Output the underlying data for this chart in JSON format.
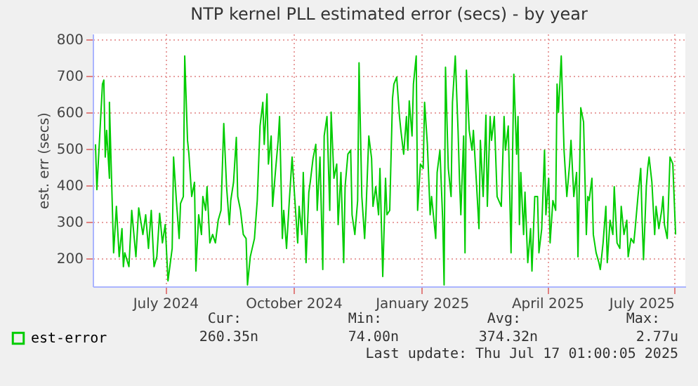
{
  "chart_data": {
    "type": "line",
    "title": "NTP kernel PLL estimated error (secs) - by year",
    "ylabel": "est. err (secs)",
    "x": [
      "2024-05-12",
      "2024-05-13",
      "2024-05-17",
      "2024-05-18",
      "2024-05-19",
      "2024-05-20",
      "2024-05-22",
      "2024-05-22",
      "2024-05-25",
      "2024-05-27",
      "2024-05-29",
      "2024-05-31",
      "2024-06-01",
      "2024-06-02",
      "2024-06-05",
      "2024-06-07",
      "2024-06-10",
      "2024-06-12",
      "2024-06-15",
      "2024-06-17",
      "2024-06-19",
      "2024-06-21",
      "2024-06-23",
      "2024-06-25",
      "2024-06-27",
      "2024-06-29",
      "2024-07-01",
      "2024-07-03",
      "2024-07-06",
      "2024-07-07",
      "2024-07-09",
      "2024-07-11",
      "2024-07-12",
      "2024-07-14",
      "2024-07-15",
      "2024-07-17",
      "2024-07-18",
      "2024-07-20",
      "2024-07-22",
      "2024-07-23",
      "2024-07-25",
      "2024-07-27",
      "2024-07-28",
      "2024-07-30",
      "2024-07-31",
      "2024-08-02",
      "2024-08-04",
      "2024-08-06",
      "2024-08-08",
      "2024-08-10",
      "2024-08-12",
      "2024-08-14",
      "2024-08-16",
      "2024-08-17",
      "2024-08-19",
      "2024-08-21",
      "2024-08-22",
      "2024-08-24",
      "2024-08-26",
      "2024-08-28",
      "2024-08-29",
      "2024-08-31",
      "2024-09-03",
      "2024-09-05",
      "2024-09-07",
      "2024-09-09",
      "2024-09-10",
      "2024-09-12",
      "2024-09-13",
      "2024-09-15",
      "2024-09-16",
      "2024-09-18",
      "2024-09-20",
      "2024-09-21",
      "2024-09-23",
      "2024-09-24",
      "2024-09-26",
      "2024-09-28",
      "2024-09-30",
      "2024-10-02",
      "2024-10-04",
      "2024-10-05",
      "2024-10-07",
      "2024-10-08",
      "2024-10-10",
      "2024-10-12",
      "2024-10-13",
      "2024-10-15",
      "2024-10-17",
      "2024-10-18",
      "2024-10-20",
      "2024-10-22",
      "2024-10-23",
      "2024-10-25",
      "2024-10-27",
      "2024-10-28",
      "2024-10-30",
      "2024-11-01",
      "2024-11-02",
      "2024-11-04",
      "2024-11-06",
      "2024-11-07",
      "2024-11-09",
      "2024-11-11",
      "2024-11-12",
      "2024-11-14",
      "2024-11-16",
      "2024-11-17",
      "2024-11-19",
      "2024-11-21",
      "2024-11-22",
      "2024-11-24",
      "2024-11-26",
      "2024-11-27",
      "2024-11-29",
      "2024-12-01",
      "2024-12-02",
      "2024-12-04",
      "2024-12-06",
      "2024-12-07",
      "2024-12-09",
      "2024-12-11",
      "2024-12-12",
      "2024-12-14",
      "2024-12-16",
      "2024-12-17",
      "2024-12-19",
      "2024-12-21",
      "2024-12-22",
      "2024-12-23",
      "2024-12-25",
      "2024-12-26",
      "2024-12-28",
      "2024-12-29",
      "2024-12-31",
      "2025-01-02",
      "2025-01-03",
      "2025-01-05",
      "2025-01-07",
      "2025-01-08",
      "2025-01-11",
      "2025-01-12",
      "2025-01-14",
      "2025-01-16",
      "2025-01-17",
      "2025-01-18",
      "2025-01-20",
      "2025-01-22",
      "2025-01-23",
      "2025-01-25",
      "2025-01-27",
      "2025-01-28",
      "2025-01-29",
      "2025-01-31",
      "2025-02-01",
      "2025-02-02",
      "2025-02-04",
      "2025-02-06",
      "2025-02-07",
      "2025-02-09",
      "2025-02-11",
      "2025-02-12",
      "2025-02-14",
      "2025-02-16",
      "2025-02-17",
      "2025-02-19",
      "2025-02-20",
      "2025-02-22",
      "2025-02-24",
      "2025-02-27",
      "2025-03-01",
      "2025-03-02",
      "2025-03-04",
      "2025-03-06",
      "2025-03-08",
      "2025-03-10",
      "2025-03-11",
      "2025-03-12",
      "2025-03-13",
      "2025-03-15",
      "2025-03-16",
      "2025-03-18",
      "2025-03-20",
      "2025-03-21",
      "2025-03-23",
      "2025-03-25",
      "2025-03-26",
      "2025-03-28",
      "2025-03-30",
      "2025-03-31",
      "2025-04-02",
      "2025-04-03",
      "2025-04-05",
      "2025-04-07",
      "2025-04-08",
      "2025-04-09",
      "2025-04-11",
      "2025-04-13",
      "2025-04-15",
      "2025-04-17",
      "2025-04-18",
      "2025-04-20",
      "2025-04-22",
      "2025-04-23",
      "2025-04-25",
      "2025-04-27",
      "2025-04-29",
      "2025-04-30",
      "2025-05-01",
      "2025-05-03",
      "2025-05-04",
      "2025-05-06",
      "2025-05-08",
      "2025-05-09",
      "2025-05-11",
      "2025-05-13",
      "2025-05-14",
      "2025-05-16",
      "2025-05-18",
      "2025-05-19",
      "2025-05-21",
      "2025-05-23",
      "2025-05-24",
      "2025-05-26",
      "2025-05-28",
      "2025-05-29",
      "2025-05-31",
      "2025-06-02",
      "2025-06-03",
      "2025-06-05",
      "2025-06-07",
      "2025-06-08",
      "2025-06-09",
      "2025-06-11",
      "2025-06-12",
      "2025-06-13",
      "2025-06-15",
      "2025-06-17",
      "2025-06-18",
      "2025-06-20",
      "2025-06-22",
      "2025-06-23",
      "2025-06-24",
      "2025-06-26",
      "2025-06-28",
      "2025-06-30",
      "2025-07-02"
    ],
    "series": [
      {
        "name": "est-error",
        "color": "#00cc00",
        "values": [
          512,
          388,
          677,
          688,
          477,
          550,
          419,
          627,
          215,
          342,
          204,
          281,
          177,
          215,
          177,
          331,
          204,
          338,
          265,
          319,
          227,
          331,
          177,
          204,
          323,
          242,
          292,
          138,
          227,
          477,
          358,
          254,
          350,
          369,
          754,
          523,
          485,
          369,
          408,
          165,
          319,
          265,
          369,
          331,
          396,
          242,
          265,
          242,
          304,
          331,
          569,
          396,
          292,
          358,
          408,
          531,
          369,
          331,
          265,
          254,
          127,
          204,
          254,
          358,
          562,
          627,
          512,
          650,
          458,
          535,
          342,
          435,
          523,
          588,
          254,
          331,
          227,
          358,
          477,
          358,
          242,
          342,
          265,
          435,
          188,
          381,
          408,
          473,
          512,
          331,
          477,
          169,
          535,
          588,
          331,
          600,
          419,
          458,
          292,
          435,
          188,
          396,
          485,
          496,
          319,
          265,
          358,
          735,
          369,
          254,
          331,
          535,
          473,
          342,
          396,
          319,
          446,
          150,
          419,
          319,
          331,
          638,
          677,
          696,
          588,
          550,
          485,
          588,
          496,
          631,
          535,
          677,
          754,
          331,
          458,
          446,
          627,
          512,
          319,
          369,
          254,
          435,
          496,
          304,
          127,
          723,
          446,
          369,
          627,
          754,
          550,
          419,
          319,
          535,
          215,
          715,
          550,
          496,
          550,
          419,
          281,
          523,
          369,
          592,
          342,
          588,
          523,
          588,
          369,
          342,
          588,
          496,
          562,
          215,
          704,
          485,
          588,
          292,
          435,
          265,
          381,
          188,
          281,
          165,
          369,
          369,
          215,
          281,
          496,
          319,
          419,
          242,
          358,
          331,
          677,
          600,
          754,
          496,
          369,
          458,
          523,
          369,
          435,
          204,
          612,
          573,
          265,
          369,
          358,
          419,
          265,
          215,
          188,
          169,
          242,
          342,
          188,
          304,
          265,
          396,
          242,
          227,
          342,
          265,
          304,
          204,
          254,
          242,
          281,
          369,
          446,
          304,
          196,
          396,
          446,
          477,
          408,
          265,
          342,
          281,
          331,
          369,
          292,
          254,
          477,
          458,
          265
        ]
      }
    ],
    "ylim": [
      123,
      815
    ],
    "yticks": [
      200,
      300,
      400,
      500,
      600,
      700,
      800
    ],
    "xlim": [
      "2024-05-10",
      "2025-07-09"
    ],
    "xticks": [
      {
        "value": "2024-07-01",
        "label": "July 2024"
      },
      {
        "value": "2024-10-01",
        "label": "October 2024"
      },
      {
        "value": "2025-01-01",
        "label": "January 2025"
      },
      {
        "value": "2025-04-01",
        "label": "April 2025"
      },
      {
        "value": "2025-07-01",
        "label": "July 2025"
      }
    ],
    "grid": true,
    "legend": "bottom left",
    "line_style": "solid",
    "marker": "none",
    "annotations": [
      "Cur:",
      "Min:",
      "Avg:",
      "Max:",
      "260.35n",
      "74.00n",
      "374.32n",
      "2.77u",
      "Last update: Thu Jul 17 01:00:05 2025"
    ]
  }
}
